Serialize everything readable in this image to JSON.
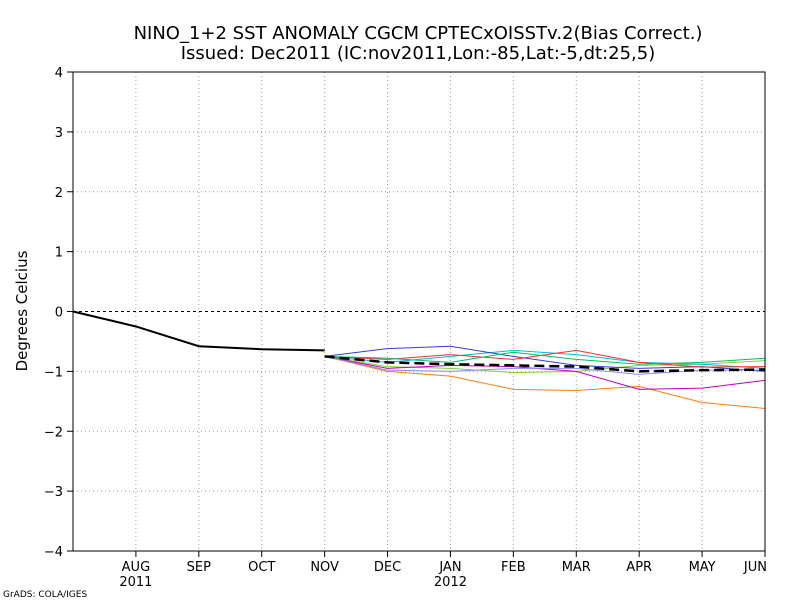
{
  "chart_data": {
    "type": "line",
    "title": "NINO_1+2 SST ANOMALY CGCM CPTECxOISSTv.2(Bias Correct.)",
    "subtitle": "Issued:  Dec2011 (IC:nov2011,Lon:-85,Lat:-5,dt:25,5)",
    "xlabel": "",
    "ylabel": "Degrees Celcius",
    "ylim": [
      -4,
      4
    ],
    "yticks": [
      -4,
      -3,
      -2,
      -1,
      0,
      1,
      2,
      3,
      4
    ],
    "xlim": [
      0,
      11
    ],
    "x_ticks": [
      {
        "x": 1,
        "label": "AUG"
      },
      {
        "x": 2,
        "label": "SEP"
      },
      {
        "x": 3,
        "label": "OCT"
      },
      {
        "x": 4,
        "label": "NOV"
      },
      {
        "x": 5,
        "label": "DEC"
      },
      {
        "x": 6,
        "label": "JAN"
      },
      {
        "x": 7,
        "label": "FEB"
      },
      {
        "x": 8,
        "label": "MAR"
      },
      {
        "x": 9,
        "label": "APR"
      },
      {
        "x": 10,
        "label": "MAY"
      },
      {
        "x": 11,
        "label": "JUN"
      }
    ],
    "year_labels": [
      {
        "x": 1,
        "label": "2011"
      },
      {
        "x": 6,
        "label": "2012"
      }
    ],
    "grid": true,
    "zero_line": true,
    "observed": {
      "name": "observed",
      "color": "#000000",
      "x": [
        0,
        1,
        2,
        3,
        4
      ],
      "values": [
        0.0,
        -0.25,
        -0.58,
        -0.63,
        -0.65
      ]
    },
    "members_x": [
      4,
      5,
      6,
      7,
      8,
      9,
      10,
      11
    ],
    "members": [
      {
        "color": "#ff7f0e",
        "values": [
          -0.75,
          -1.0,
          -1.08,
          -1.3,
          -1.32,
          -1.25,
          -1.52,
          -1.62
        ]
      },
      {
        "color": "#7fd13b",
        "values": [
          -0.75,
          -0.92,
          -0.95,
          -1.02,
          -1.0,
          -0.9,
          -0.88,
          -0.82
        ]
      },
      {
        "color": "#00bcd4",
        "values": [
          -0.75,
          -0.85,
          -0.75,
          -0.65,
          -0.72,
          -0.85,
          -0.88,
          -0.95
        ]
      },
      {
        "color": "#3a3ad0",
        "values": [
          -0.75,
          -0.62,
          -0.58,
          -0.75,
          -0.9,
          -0.95,
          -0.92,
          -1.0
        ]
      },
      {
        "color": "#c000c0",
        "values": [
          -0.75,
          -0.95,
          -0.9,
          -0.92,
          -1.0,
          -1.3,
          -1.28,
          -1.15
        ]
      },
      {
        "color": "#ff2a2a",
        "values": [
          -0.75,
          -0.8,
          -0.72,
          -0.8,
          -0.65,
          -0.85,
          -0.93,
          -0.92
        ]
      },
      {
        "color": "#00c060",
        "values": [
          -0.75,
          -0.78,
          -0.85,
          -0.68,
          -0.8,
          -0.88,
          -0.85,
          -0.78
        ]
      },
      {
        "color": "#8a8aff",
        "values": [
          -0.75,
          -0.98,
          -1.0,
          -0.95,
          -0.95,
          -1.05,
          -0.98,
          -0.98
        ]
      }
    ],
    "ensemble_mean": {
      "name": "ensemble mean",
      "color": "#000000",
      "dashed": true,
      "values": [
        -0.75,
        -0.85,
        -0.88,
        -0.9,
        -0.92,
        -1.0,
        -0.98,
        -0.97
      ]
    },
    "footer": "GrADS: COLA/IGES"
  }
}
